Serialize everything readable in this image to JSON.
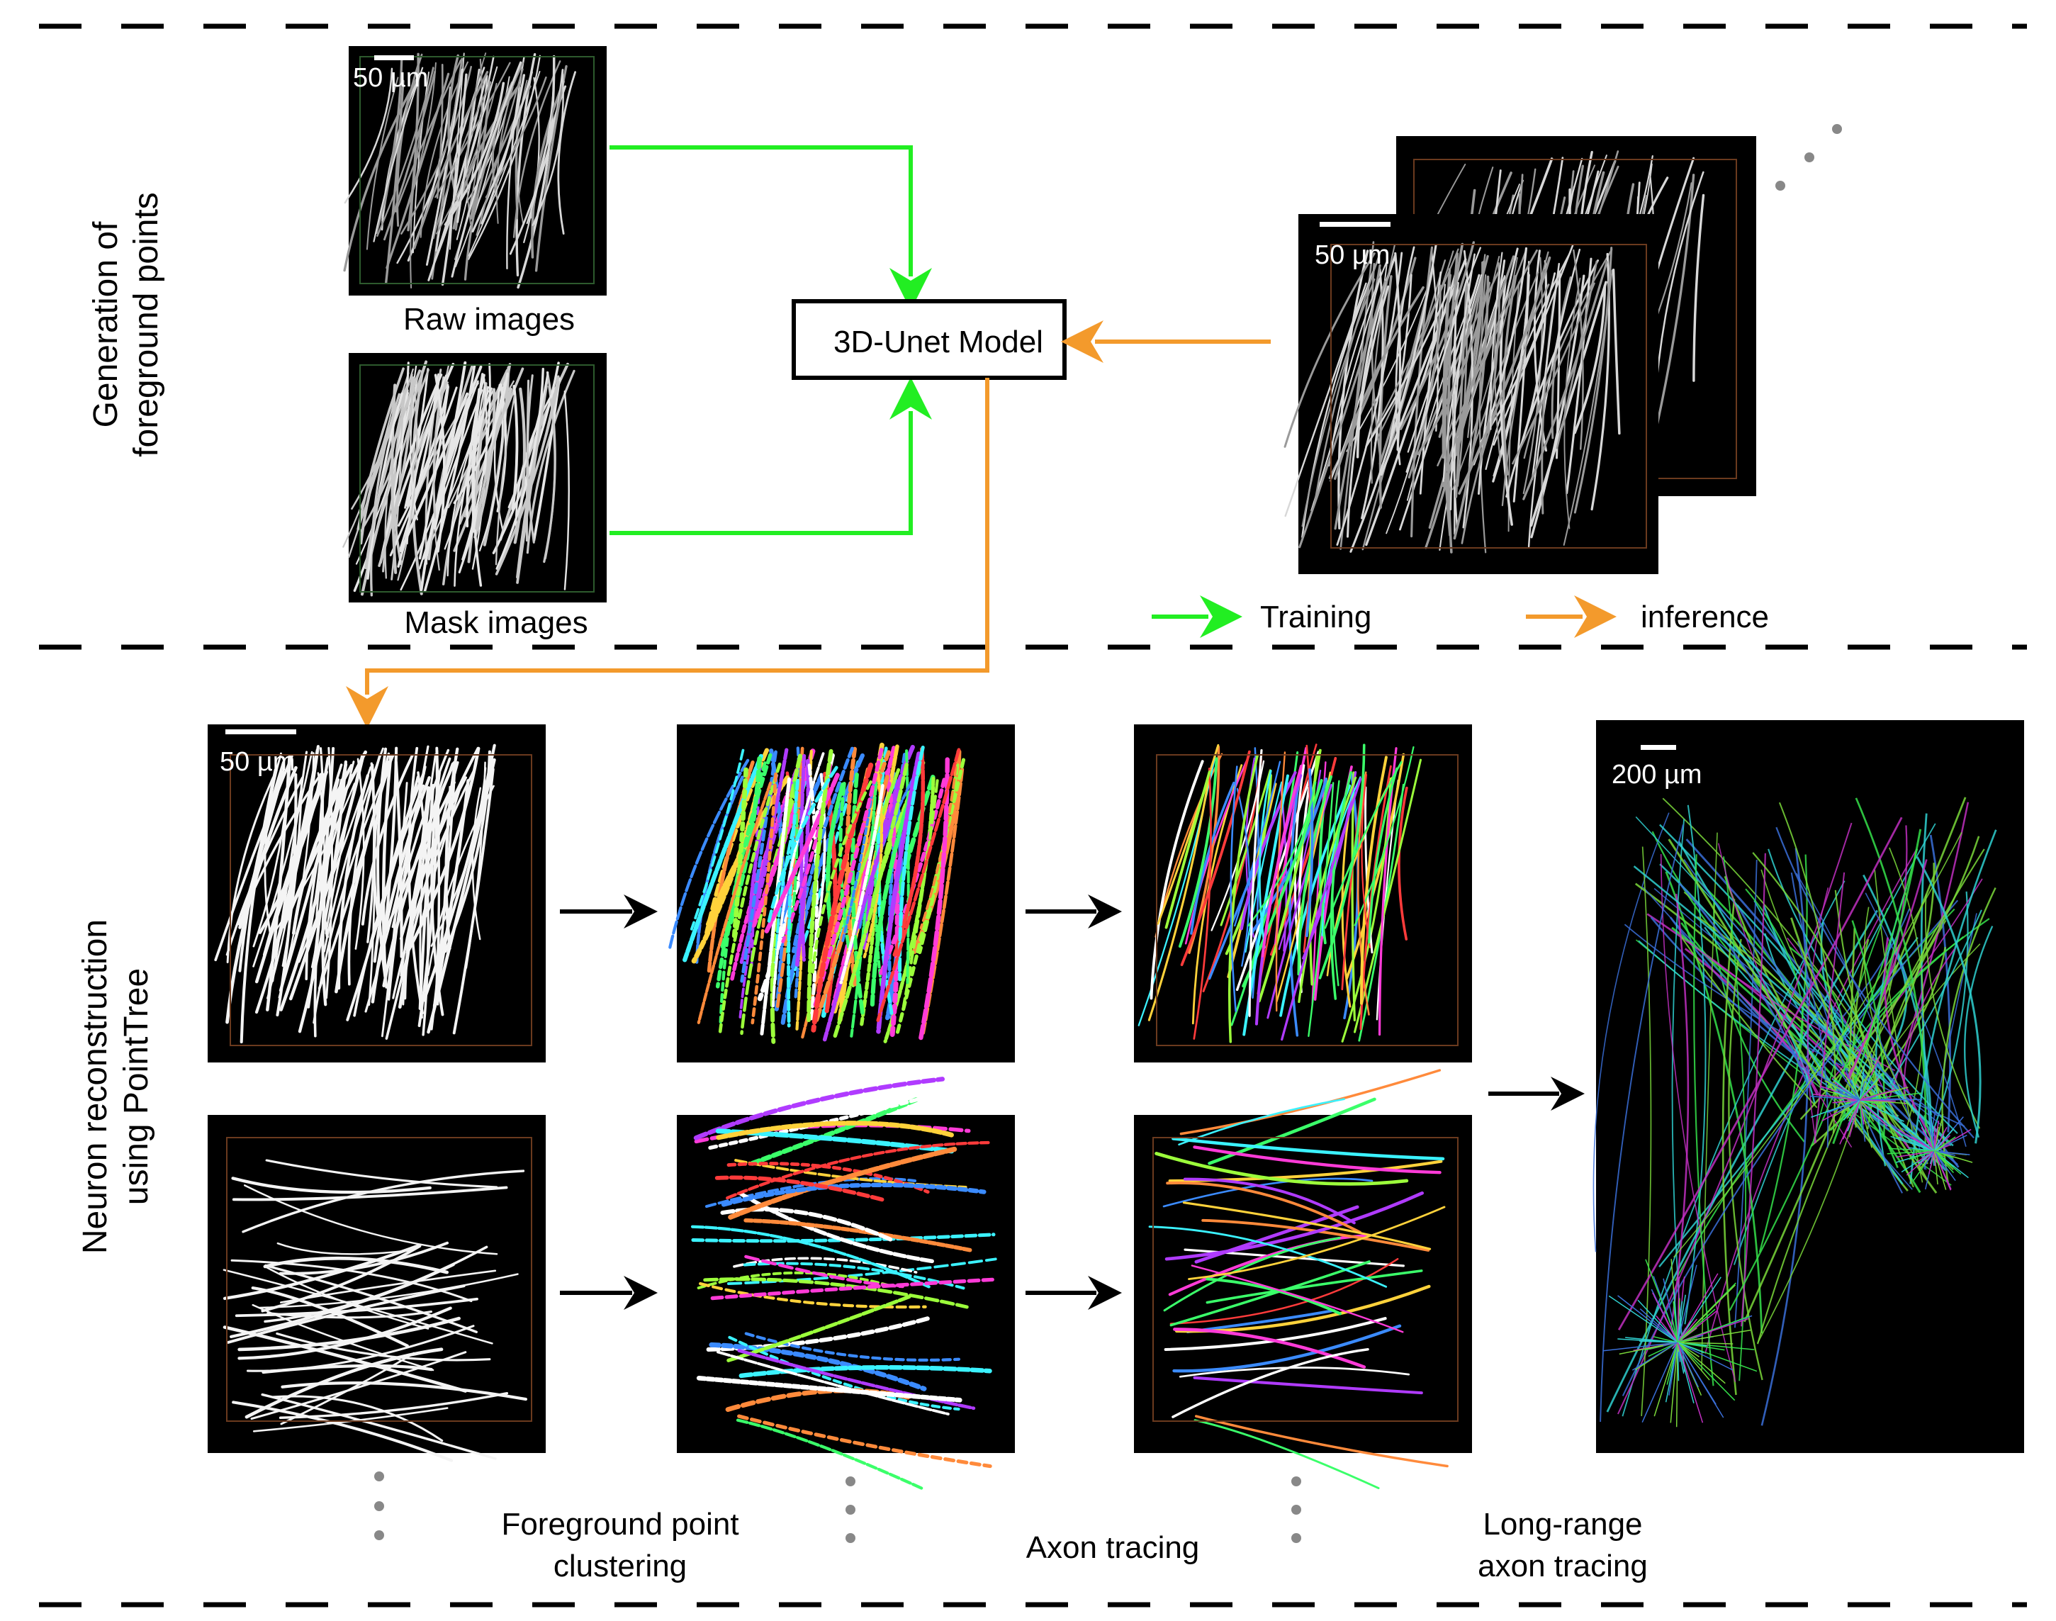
{
  "section_titles": {
    "top_line1": "Generation of",
    "top_line2": "foreground points",
    "bottom_line1": "Neuron reconstruction",
    "bottom_line2": "using PointTree"
  },
  "model_label": "3D-Unet Model",
  "image_captions": {
    "raw": "Raw images",
    "mask": "Mask images"
  },
  "scale_bars": {
    "small": "50 µm",
    "large": "200 µm"
  },
  "legend": {
    "training": "Training",
    "inference": "inference"
  },
  "step_captions": {
    "clustering_line1": "Foreground point",
    "clustering_line2": "clustering",
    "tracing": "Axon tracing",
    "long_line1": "Long-range",
    "long_line2": "axon tracing"
  },
  "colors": {
    "training_arrow": "#22ee22",
    "inference_arrow": "#f39a2c",
    "panel_bg": "#000000",
    "ellipsis_dots": "#888888"
  }
}
